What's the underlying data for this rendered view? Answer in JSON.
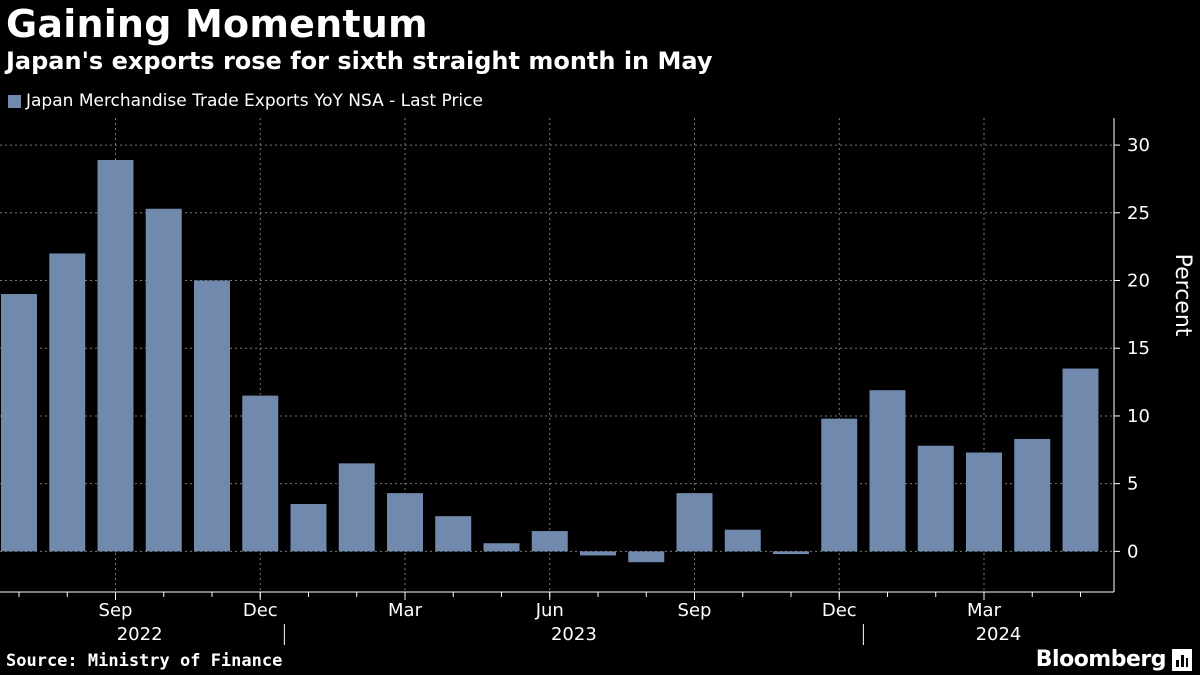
{
  "header": {
    "title": "Gaining Momentum",
    "subtitle": "Japan's exports rose for sixth straight month in May"
  },
  "footer": {
    "source": "Source: Ministry of Finance",
    "brand": "Bloomberg"
  },
  "chart_data": {
    "type": "bar",
    "title": "Gaining Momentum",
    "subtitle": "Japan's exports rose for sixth straight month in May",
    "ylabel": "Percent",
    "ylim": [
      -3,
      32
    ],
    "yticks": [
      0,
      5,
      10,
      15,
      20,
      25,
      30
    ],
    "grid": true,
    "legend_position": "top-left",
    "bar_color": "#7189ad",
    "categories": [
      "Jul 2022",
      "Aug 2022",
      "Sep 2022",
      "Oct 2022",
      "Nov 2022",
      "Dec 2022",
      "Jan 2023",
      "Feb 2023",
      "Mar 2023",
      "Apr 2023",
      "May 2023",
      "Jun 2023",
      "Jul 2023",
      "Aug 2023",
      "Sep 2023",
      "Oct 2023",
      "Nov 2023",
      "Dec 2023",
      "Jan 2024",
      "Feb 2024",
      "Mar 2024",
      "Apr 2024",
      "May 2024"
    ],
    "series": [
      {
        "name": "Japan Merchandise Trade Exports YoY NSA - Last Price",
        "values": [
          19.0,
          22.0,
          28.9,
          25.3,
          20.0,
          11.5,
          3.5,
          6.5,
          4.3,
          2.6,
          0.6,
          1.5,
          -0.3,
          -0.8,
          4.3,
          1.6,
          -0.2,
          9.8,
          11.9,
          7.8,
          7.3,
          8.3,
          13.5
        ]
      }
    ],
    "x_tick_labels": [
      {
        "category_index": 2,
        "label": "Sep"
      },
      {
        "category_index": 5,
        "label": "Dec"
      },
      {
        "category_index": 8,
        "label": "Mar"
      },
      {
        "category_index": 11,
        "label": "Jun"
      },
      {
        "category_index": 14,
        "label": "Sep"
      },
      {
        "category_index": 17,
        "label": "Dec"
      },
      {
        "category_index": 20,
        "label": "Mar"
      }
    ],
    "year_labels": [
      {
        "label": "2022",
        "start_index": 0,
        "end_index": 5
      },
      {
        "label": "2023",
        "start_index": 6,
        "end_index": 17
      },
      {
        "label": "2024",
        "start_index": 18,
        "end_index": 22
      }
    ]
  }
}
